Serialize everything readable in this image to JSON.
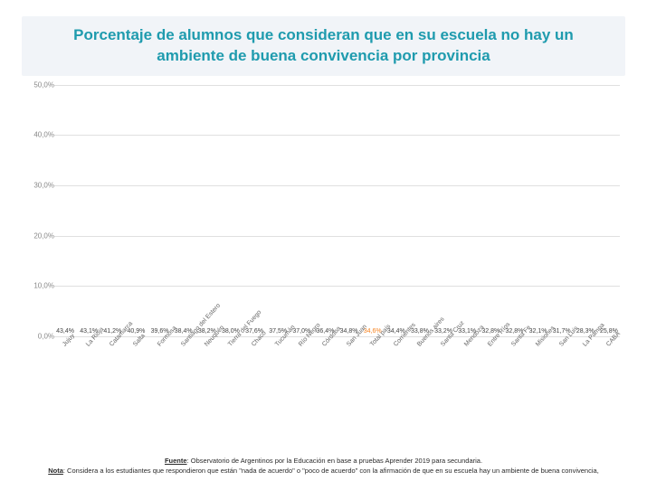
{
  "title": "Porcentaje de alumnos que consideran que en su escuela no hay un ambiente de buena convivencia por provincia",
  "chart": {
    "type": "bar",
    "ylim": [
      0,
      50
    ],
    "ytick_step": 10,
    "y_tick_format_decimal": ",0%",
    "bar_color_default": "#47c2c4",
    "bar_color_highlight": "#f58220",
    "grid_color": "#e0e0e0",
    "background_color": "#ffffff",
    "value_label_fontsize": 7,
    "axis_label_fontsize": 8,
    "x_label_rotation_deg": -48,
    "categories": [
      {
        "name": "Jujuy",
        "value": 43.4,
        "highlight": false
      },
      {
        "name": "La Rioja",
        "value": 43.1,
        "highlight": false
      },
      {
        "name": "Catamarca",
        "value": 41.2,
        "highlight": false
      },
      {
        "name": "Salta",
        "value": 40.9,
        "highlight": false
      },
      {
        "name": "Formosa",
        "value": 39.6,
        "highlight": false
      },
      {
        "name": "Santiago del Estero",
        "value": 38.4,
        "highlight": false
      },
      {
        "name": "Neuquén",
        "value": 38.2,
        "highlight": false
      },
      {
        "name": "Tierra del Fuego",
        "value": 38.0,
        "highlight": false
      },
      {
        "name": "Chaco",
        "value": 37.6,
        "highlight": false
      },
      {
        "name": "Tucumán",
        "value": 37.5,
        "highlight": false
      },
      {
        "name": "Río Negro",
        "value": 37.0,
        "highlight": false
      },
      {
        "name": "Córdoba",
        "value": 36.4,
        "highlight": false
      },
      {
        "name": "San Juan",
        "value": 34.8,
        "highlight": false
      },
      {
        "name": "Total país",
        "value": 34.6,
        "highlight": true
      },
      {
        "name": "Corrientes",
        "value": 34.4,
        "highlight": false
      },
      {
        "name": "Buenos aires",
        "value": 33.8,
        "highlight": false
      },
      {
        "name": "Santa Cruz",
        "value": 33.2,
        "highlight": false
      },
      {
        "name": "Mendoza",
        "value": 33.1,
        "highlight": false
      },
      {
        "name": "Entre Ríos",
        "value": 32.8,
        "highlight": false
      },
      {
        "name": "Santa Fe",
        "value": 32.8,
        "highlight": false
      },
      {
        "name": "Misiones",
        "value": 32.1,
        "highlight": false
      },
      {
        "name": "San Luis",
        "value": 31.7,
        "highlight": false
      },
      {
        "name": "La Pampa",
        "value": 28.3,
        "highlight": false
      },
      {
        "name": "CABA",
        "value": 25.8,
        "highlight": false
      }
    ]
  },
  "footer": {
    "source_label": "Fuente",
    "source_text": ": Observatorio de Argentinos por la Educación en base a pruebas Aprender 2019 para secundaria.",
    "note_label": "Nota",
    "note_text": ": Considera a los estudiantes que respondieron que están \"nada de acuerdo\" o \"poco de acuerdo\" con la afirmación de que en su escuela hay un ambiente de buena convivencia,"
  }
}
